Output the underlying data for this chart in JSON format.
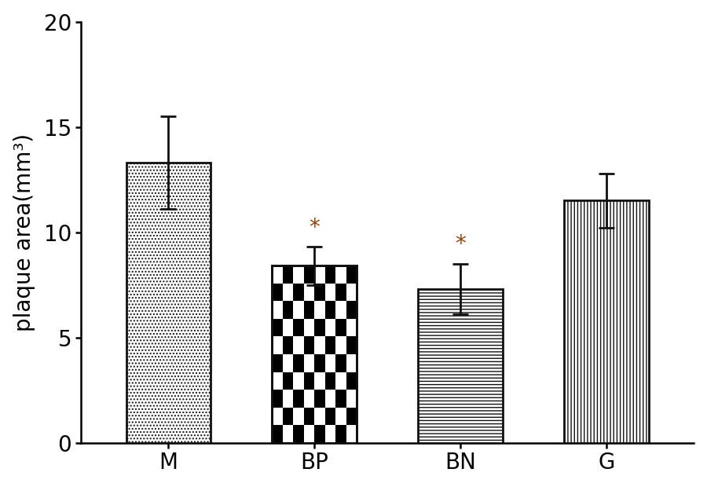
{
  "categories": [
    "M",
    "BP",
    "BN",
    "G"
  ],
  "values": [
    13.3,
    8.4,
    7.3,
    11.5
  ],
  "errors": [
    2.2,
    0.9,
    1.2,
    1.3
  ],
  "ylabel": "plaque area(mm³)",
  "ylim": [
    0,
    20
  ],
  "yticks": [
    0,
    5,
    10,
    15,
    20
  ],
  "significance": [
    false,
    true,
    true,
    false
  ],
  "sig_color": "#8B4513",
  "bar_edge_color": "#111111",
  "bar_linewidth": 2.0,
  "error_color": "#111111",
  "error_linewidth": 2.0,
  "error_capsize": 7,
  "background_color": "#ffffff",
  "tick_label_fontsize": 20,
  "ylabel_fontsize": 20,
  "sig_fontsize": 20,
  "bar_width": 0.58,
  "hatch_patterns": [
    "....",
    "    ",
    "----",
    "||||"
  ],
  "hatch_colors": [
    "#111111",
    "#111111",
    "#111111",
    "#111111"
  ]
}
